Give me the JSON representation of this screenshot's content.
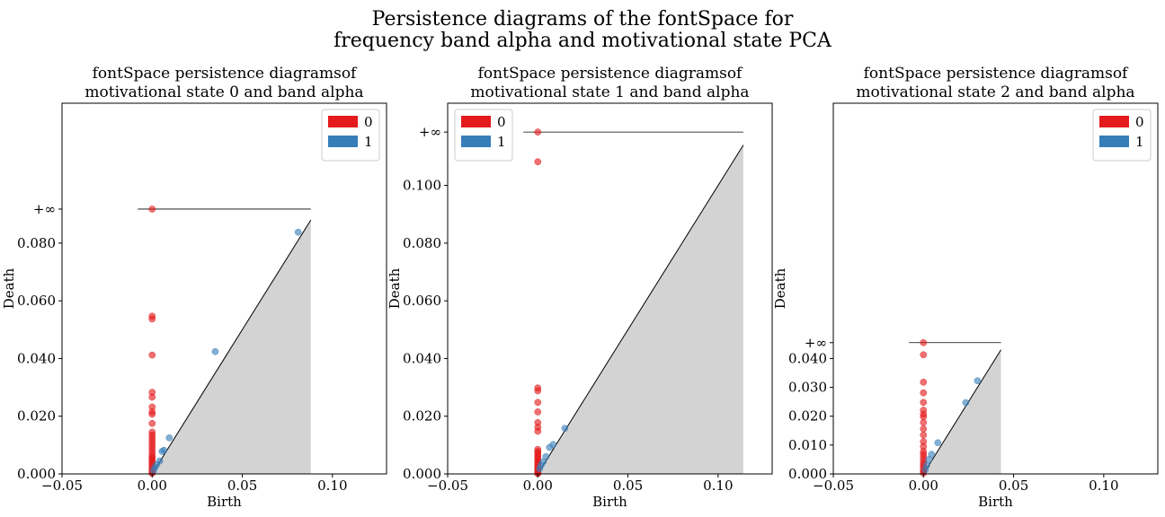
{
  "suptitle": {
    "line1": "Persistence diagrams of the fontSpace for",
    "line2": "frequency band alpha and motivational state PCA"
  },
  "colors": {
    "h0": "#e41a1c",
    "h1": "#377eb8",
    "diag_fill": "#d3d3d3"
  },
  "chart_data": [
    {
      "type": "scatter",
      "title_line1": "fontSpace persistence diagramsof",
      "title_line2": "motivational state 0 and band alpha",
      "xlabel": "Birth",
      "ylabel": "Death",
      "xlim": [
        -0.05,
        0.13
      ],
      "ylim": [
        0.0,
        0.1285
      ],
      "inf_value": 0.0918,
      "inf_label": "+∞",
      "diag_max": 0.088,
      "xticks": [
        -0.05,
        0.0,
        0.05,
        0.1
      ],
      "xtick_labels": [
        "−0.05",
        "0.00",
        "0.05",
        "0.10"
      ],
      "yticks": [
        0.0,
        0.02,
        0.04,
        0.06,
        0.08
      ],
      "ytick_labels": [
        "0.000",
        "0.020",
        "0.040",
        "0.060",
        "0.080"
      ],
      "legend_position": "top-right",
      "series": [
        {
          "name": "0",
          "x": [
            0,
            0,
            0,
            0,
            0,
            0,
            0,
            0,
            0,
            0,
            0,
            0,
            0,
            0,
            0,
            0,
            0,
            0,
            0,
            0,
            0,
            0,
            0,
            0,
            0,
            0,
            0,
            0,
            0,
            0
          ],
          "y": [
            0.0918,
            0.0547,
            0.0537,
            0.0412,
            0.0283,
            0.0266,
            0.0232,
            0.0215,
            0.0207,
            0.0175,
            0.0145,
            0.0135,
            0.0125,
            0.0115,
            0.0105,
            0.0095,
            0.0085,
            0.0075,
            0.0065,
            0.0058,
            0.0052,
            0.0046,
            0.004,
            0.0034,
            0.0028,
            0.0022,
            0.0016,
            0.001,
            0.0005,
            0.0002
          ]
        },
        {
          "name": "1",
          "x": [
            0.081,
            0.035,
            0.0095,
            0.0065,
            0.0055,
            0.0042,
            0.0025,
            0.0015,
            0.0008
          ],
          "y": [
            0.0838,
            0.0424,
            0.0125,
            0.0082,
            0.0078,
            0.0045,
            0.0032,
            0.0022,
            0.0012
          ]
        }
      ]
    },
    {
      "type": "scatter",
      "title_line1": "fontSpace persistence diagramsof",
      "title_line2": "motivational state 1 and band alpha",
      "xlabel": "Birth",
      "ylabel": "Death",
      "xlim": [
        -0.05,
        0.13
      ],
      "ylim": [
        0.0,
        0.1285
      ],
      "inf_value": 0.1185,
      "inf_label": "+∞",
      "diag_max": 0.114,
      "xticks": [
        -0.05,
        0.0,
        0.05,
        0.1
      ],
      "xtick_labels": [
        "−0.05",
        "0.00",
        "0.05",
        "0.10"
      ],
      "yticks": [
        0.0,
        0.02,
        0.04,
        0.06,
        0.08,
        0.1
      ],
      "ytick_labels": [
        "0.000",
        "0.020",
        "0.040",
        "0.060",
        "0.080",
        "0.100"
      ],
      "legend_position": "top-left",
      "series": [
        {
          "name": "0",
          "x": [
            0,
            0,
            0,
            0,
            0,
            0,
            0,
            0,
            0,
            0,
            0,
            0,
            0,
            0,
            0,
            0,
            0,
            0,
            0,
            0,
            0,
            0,
            0,
            0,
            0
          ],
          "y": [
            0.1185,
            0.1082,
            0.0298,
            0.0288,
            0.0248,
            0.0215,
            0.0178,
            0.0162,
            0.0148,
            0.0085,
            0.0078,
            0.0072,
            0.0065,
            0.0058,
            0.0052,
            0.0046,
            0.004,
            0.0034,
            0.0028,
            0.0022,
            0.0016,
            0.001,
            0.0006,
            0.0003,
            0.0001
          ]
        },
        {
          "name": "1",
          "x": [
            0.015,
            0.0085,
            0.0065,
            0.0045,
            0.003,
            0.0018,
            0.001
          ],
          "y": [
            0.0158,
            0.0102,
            0.0092,
            0.006,
            0.0042,
            0.003,
            0.0018
          ]
        }
      ]
    },
    {
      "type": "scatter",
      "title_line1": "fontSpace persistence diagramsof",
      "title_line2": "motivational state 2 and band alpha",
      "xlabel": "Birth",
      "ylabel": "Death",
      "xlim": [
        -0.05,
        0.13
      ],
      "ylim": [
        0.0,
        0.1285
      ],
      "inf_value": 0.0455,
      "inf_label": "+∞",
      "diag_max": 0.043,
      "xticks": [
        -0.05,
        0.0,
        0.05,
        0.1
      ],
      "xtick_labels": [
        "−0.05",
        "0.00",
        "0.05",
        "0.10"
      ],
      "yticks": [
        0.0,
        0.01,
        0.02,
        0.03,
        0.04
      ],
      "ytick_labels": [
        "0.000",
        "0.010",
        "0.020",
        "0.030",
        "0.040"
      ],
      "legend_position": "top-right",
      "series": [
        {
          "name": "0",
          "x": [
            0,
            0,
            0,
            0,
            0,
            0,
            0,
            0,
            0,
            0,
            0,
            0,
            0,
            0,
            0,
            0,
            0,
            0,
            0,
            0,
            0,
            0,
            0
          ],
          "y": [
            0.0455,
            0.0413,
            0.0318,
            0.0281,
            0.0248,
            0.0221,
            0.0207,
            0.0198,
            0.0178,
            0.0156,
            0.0135,
            0.0112,
            0.0095,
            0.0078,
            0.0068,
            0.0058,
            0.0048,
            0.0038,
            0.003,
            0.0022,
            0.0014,
            0.0008,
            0.0003
          ]
        },
        {
          "name": "1",
          "x": [
            0.03,
            0.0235,
            0.008,
            0.0045,
            0.003,
            0.0018,
            0.001
          ],
          "y": [
            0.0323,
            0.0247,
            0.0108,
            0.0068,
            0.005,
            0.003,
            0.0015
          ]
        }
      ]
    }
  ]
}
